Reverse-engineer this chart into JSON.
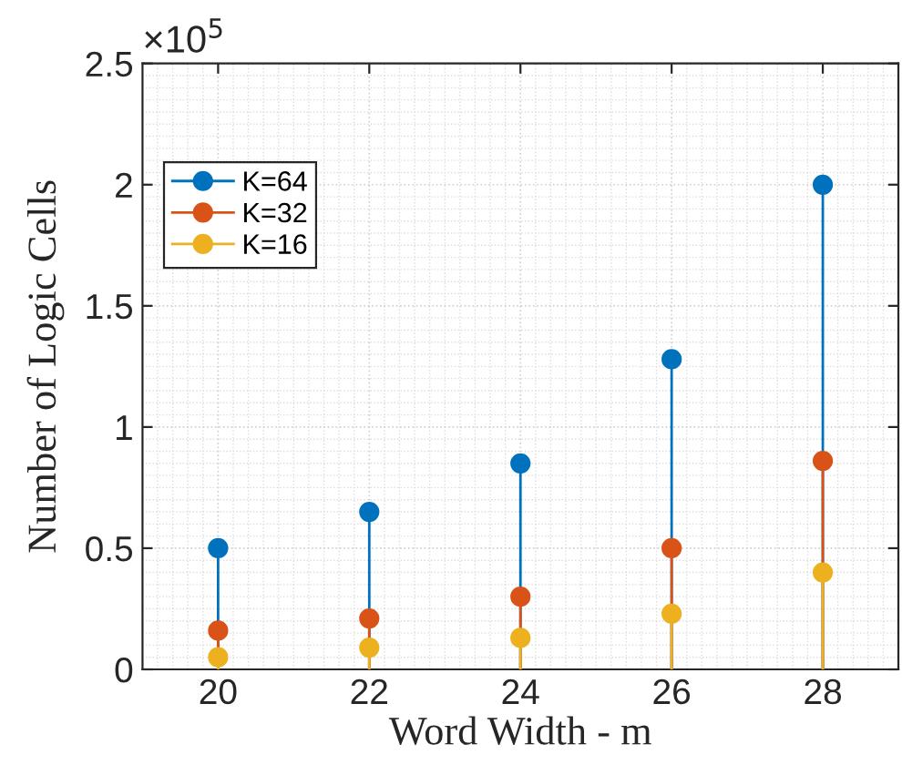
{
  "chart_data": {
    "type": "lollipop",
    "xlabel": "Word Width - m",
    "ylabel": "Number of Logic Cells",
    "x": [
      20,
      22,
      24,
      26,
      28
    ],
    "series": [
      {
        "name": "K=64",
        "color": "#0072bd",
        "values": [
          0.5,
          0.65,
          0.85,
          1.28,
          2.0
        ]
      },
      {
        "name": "K=32",
        "color": "#d95319",
        "values": [
          0.16,
          0.21,
          0.3,
          0.5,
          0.86
        ]
      },
      {
        "name": "K=16",
        "color": "#edb120",
        "values": [
          0.05,
          0.09,
          0.13,
          0.23,
          0.4
        ]
      }
    ],
    "xlim": [
      19,
      29
    ],
    "xticks": [
      20,
      22,
      24,
      26,
      28
    ],
    "ylim": [
      0,
      2.5
    ],
    "yticks": [
      0,
      0.5,
      1,
      1.5,
      2,
      2.5
    ],
    "annotations": [
      "×10$^{5}$"
    ],
    "grid": true,
    "legend": "top left",
    "marker": "circle",
    "line_style": "solid"
  }
}
